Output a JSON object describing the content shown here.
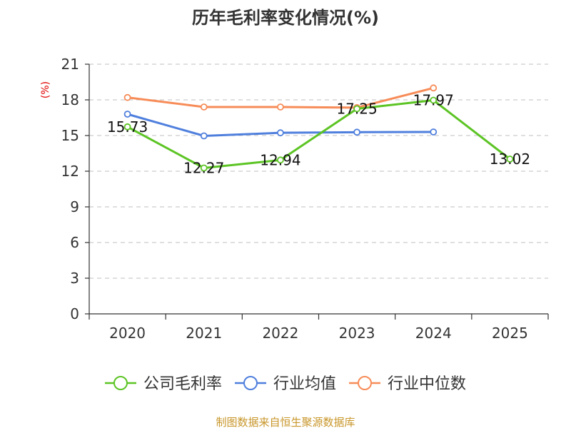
{
  "chart_data": {
    "type": "line",
    "title": "历年毛利率变化情况(%)",
    "ylabel": "(%)",
    "categories": [
      "2020",
      "2021",
      "2022",
      "2023",
      "2024",
      "2025"
    ],
    "ylim": [
      0,
      21
    ],
    "yticks": [
      0,
      3,
      6,
      9,
      12,
      15,
      18,
      21
    ],
    "grid": true,
    "legend_position": "bottom",
    "series": [
      {
        "name": "公司毛利率",
        "color": "#5cc424",
        "show_labels": true,
        "values": [
          15.73,
          12.27,
          12.94,
          17.25,
          17.97,
          13.02
        ]
      },
      {
        "name": "行业均值",
        "color": "#4f7fdd",
        "show_labels": false,
        "values": [
          16.8,
          14.97,
          15.23,
          15.28,
          15.3,
          null
        ]
      },
      {
        "name": "行业中位数",
        "color": "#f78c58",
        "show_labels": false,
        "values": [
          18.2,
          17.4,
          17.4,
          17.35,
          19.0,
          null
        ]
      }
    ]
  },
  "source_note": "制图数据来自恒生聚源数据库",
  "source_color": "#c8962a",
  "axis_color": "#333333",
  "grid_color": "#cccccc"
}
